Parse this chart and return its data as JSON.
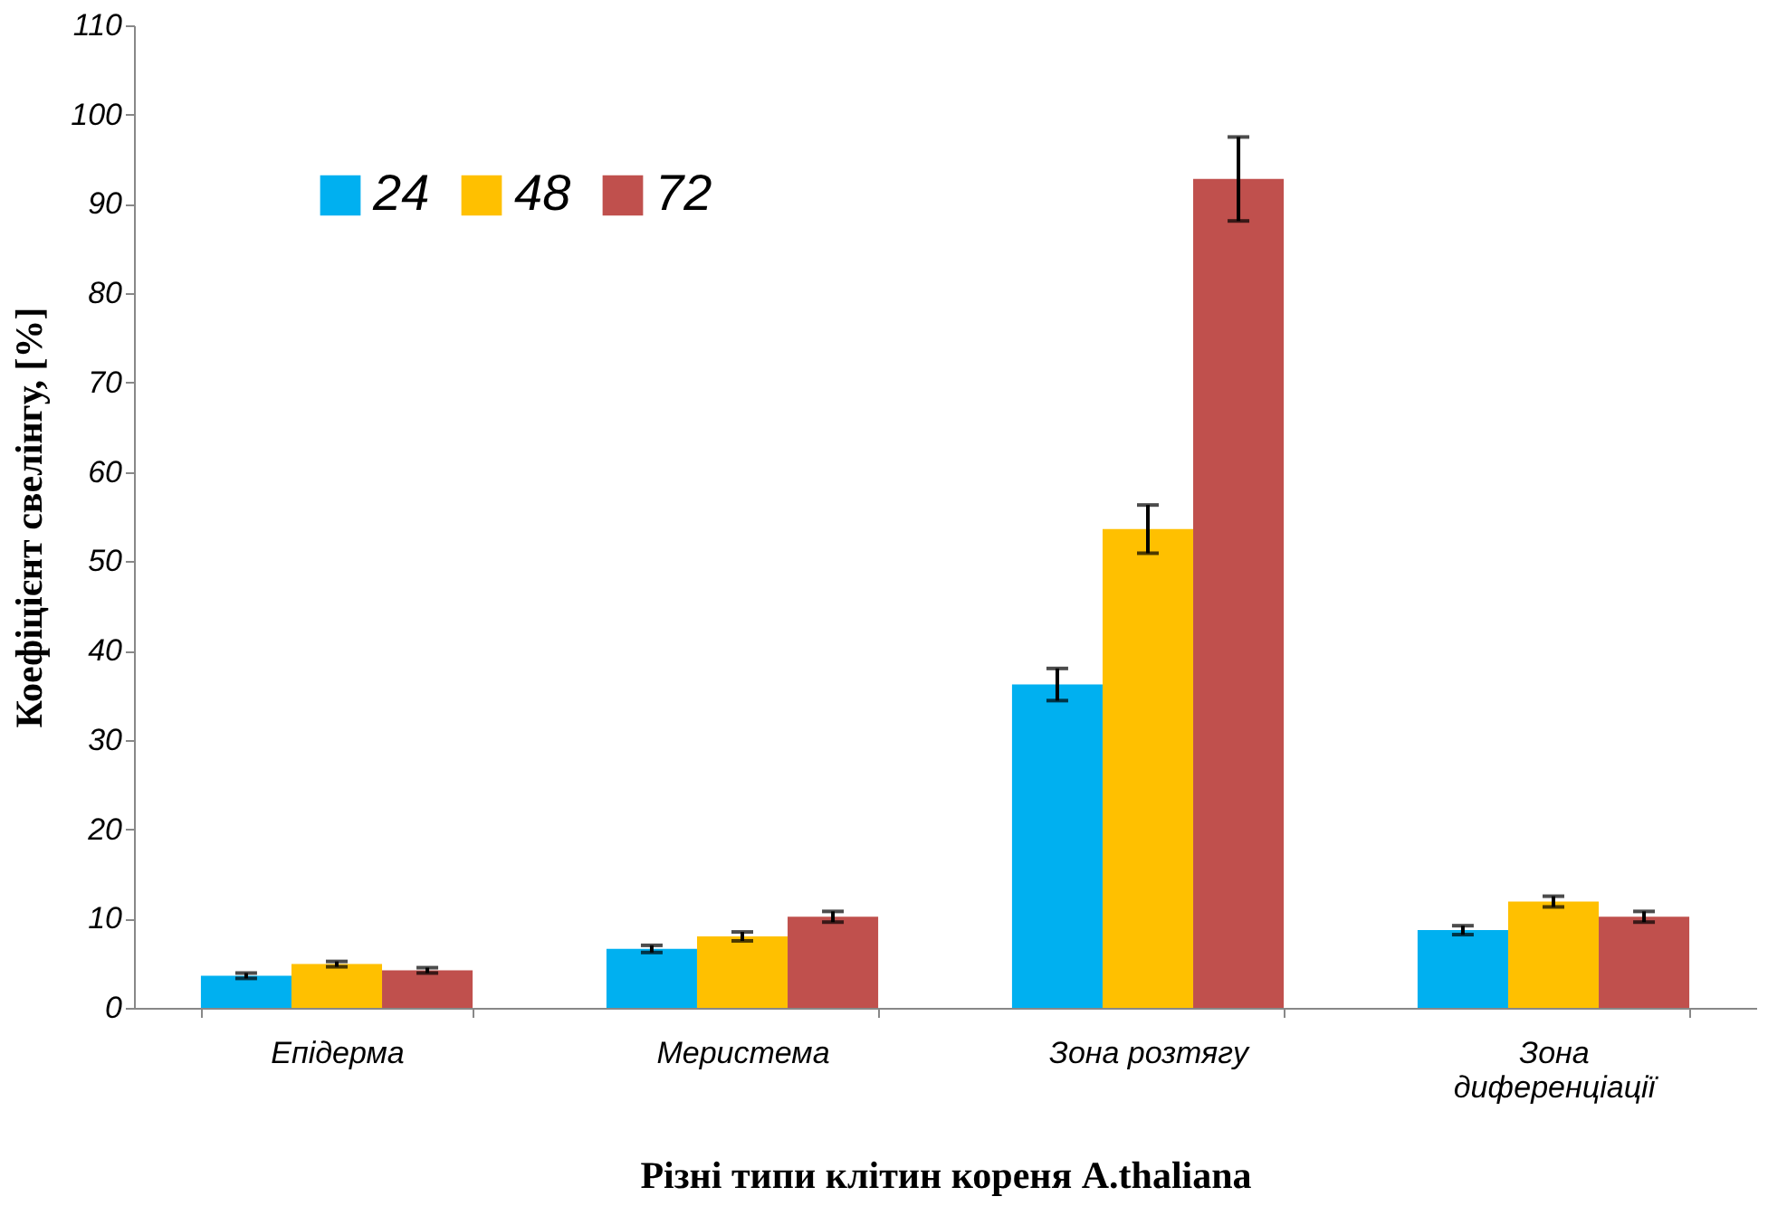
{
  "chart_data": {
    "type": "bar",
    "categories": [
      "Епідерма",
      "Меристема",
      "Зона розтягу",
      "Зона диференціації"
    ],
    "series": [
      {
        "name": "24",
        "color": "#00b0f0",
        "values": [
          3.6,
          6.6,
          36.2,
          8.7
        ],
        "errors": [
          0.3,
          0.4,
          1.8,
          0.5
        ]
      },
      {
        "name": "48",
        "color": "#ffc000",
        "values": [
          4.9,
          8.0,
          53.6,
          11.9
        ],
        "errors": [
          0.3,
          0.5,
          2.7,
          0.6
        ]
      },
      {
        "name": "72",
        "color": "#c0504d",
        "values": [
          4.2,
          10.2,
          92.8,
          10.2
        ],
        "errors": [
          0.3,
          0.6,
          4.7,
          0.6
        ]
      }
    ],
    "xlabel": "Різні типи клітин кореня A.thaliana",
    "ylabel": "Коефіцієнт свелінгу, [%]",
    "ylim": [
      0,
      110
    ],
    "yticks": [
      0,
      10,
      20,
      30,
      40,
      50,
      60,
      70,
      80,
      90,
      100,
      110
    ],
    "grid": false,
    "legend": "top left"
  }
}
